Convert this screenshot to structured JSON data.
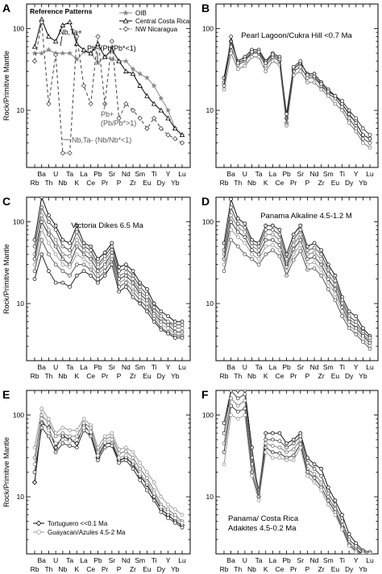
{
  "figure": {
    "ylabel": "Rock/Primitive Mantle",
    "elements_top": [
      "Ba",
      "U",
      "Ta",
      "La",
      "Pb",
      "Sr",
      "Nd",
      "Sm",
      "Ti",
      "Y",
      "Lu"
    ],
    "elements_bottom": [
      "Rb",
      "Th",
      "Nb",
      "K",
      "Ce",
      "Pr",
      "P",
      "Zr",
      "Eu",
      "Dy",
      "Yb"
    ]
  },
  "chart_data": [
    {
      "panel": "A",
      "type": "line",
      "yscale": "log",
      "ylim": [
        2,
        200
      ],
      "yticks": [
        10,
        100
      ],
      "ytick_labels": [
        "10",
        "100"
      ],
      "categories": [
        "Rb",
        "Ba",
        "Th",
        "U",
        "Nb",
        "Ta",
        "K",
        "La",
        "Ce",
        "Pb",
        "Pr",
        "Sr",
        "P",
        "Nd",
        "Zr",
        "Sm",
        "Eu",
        "Ti",
        "Dy",
        "Y",
        "Yb",
        "Lu"
      ],
      "legend_title": "Reference Patterns",
      "series": [
        {
          "name": "OIB",
          "color": "#888888",
          "marker": "star",
          "dash": "solid",
          "values": [
            50,
            50,
            55,
            50,
            50,
            50,
            42,
            52,
            50,
            38,
            45,
            42,
            40,
            40,
            32,
            28,
            25,
            20,
            14,
            10,
            6,
            5
          ]
        },
        {
          "name": "Central Costa Rica",
          "color": "#000000",
          "marker": "triangle",
          "dash": "solid",
          "values": [
            60,
            130,
            80,
            70,
            110,
            120,
            65,
            55,
            50,
            65,
            45,
            55,
            40,
            30,
            28,
            20,
            15,
            12,
            10,
            8,
            6,
            5
          ]
        },
        {
          "name": "NW Nicaragua",
          "color": "#444444",
          "marker": "diamond",
          "dash": "dashed",
          "values": [
            40,
            120,
            12,
            48,
            3,
            3,
            80,
            20,
            12,
            80,
            12,
            70,
            8,
            12,
            10,
            8,
            6,
            8,
            6,
            5,
            4.5,
            4
          ]
        }
      ],
      "annotations": [
        "Nb,Ta+",
        "Pb- (Pb/Pb*<1)",
        "Pb+",
        "(Pb/Pb*>1)",
        "Nb,Ta- (Nb/Nb*<1)"
      ]
    },
    {
      "panel": "B",
      "type": "line",
      "yscale": "log",
      "ylim": [
        2,
        200
      ],
      "yticks": [
        10,
        100
      ],
      "ytick_labels": [
        "10",
        "100"
      ],
      "title": "Pearl Lagoon/Cukra Hill <0.7 Ma",
      "categories": [
        "Rb",
        "Ba",
        "Th",
        "U",
        "Nb",
        "Ta",
        "K",
        "La",
        "Ce",
        "Pb",
        "Pr",
        "Sr",
        "P",
        "Nd",
        "Zr",
        "Sm",
        "Eu",
        "Ti",
        "Dy",
        "Y",
        "Yb",
        "Lu"
      ],
      "series": [
        {
          "values": [
            25,
            70,
            40,
            45,
            55,
            55,
            40,
            50,
            45,
            8,
            32,
            38,
            28,
            28,
            22,
            18,
            15,
            12,
            9,
            7,
            5,
            4.5
          ]
        },
        {
          "values": [
            22,
            60,
            36,
            40,
            50,
            50,
            35,
            45,
            40,
            7,
            30,
            34,
            25,
            25,
            20,
            16,
            14,
            11,
            8,
            6,
            4.5,
            4
          ]
        },
        {
          "values": [
            18,
            50,
            32,
            35,
            45,
            45,
            30,
            40,
            36,
            6.5,
            27,
            30,
            22,
            22,
            18,
            15,
            12,
            10,
            7,
            5.5,
            4,
            3.5
          ]
        },
        {
          "values": [
            20,
            80,
            38,
            42,
            52,
            52,
            38,
            48,
            42,
            9,
            34,
            40,
            27,
            26,
            21,
            17,
            15,
            13,
            10,
            8,
            6,
            5
          ]
        }
      ]
    },
    {
      "panel": "C",
      "type": "line",
      "yscale": "log",
      "ylim": [
        2,
        200
      ],
      "yticks": [
        10,
        100
      ],
      "ytick_labels": [
        "10",
        "100"
      ],
      "title": "Victoria Dikes 6.5 Ma",
      "categories": [
        "Rb",
        "Ba",
        "Th",
        "U",
        "Nb",
        "Ta",
        "K",
        "La",
        "Ce",
        "Pb",
        "Pr",
        "Sr",
        "P",
        "Nd",
        "Zr",
        "Sm",
        "Eu",
        "Ti",
        "Dy",
        "Y",
        "Yb",
        "Lu"
      ],
      "series": [
        {
          "values": [
            60,
            200,
            120,
            90,
            60,
            55,
            90,
            55,
            50,
            35,
            42,
            55,
            28,
            30,
            25,
            18,
            15,
            10,
            8,
            7,
            6,
            6
          ]
        },
        {
          "values": [
            50,
            150,
            100,
            80,
            50,
            45,
            75,
            50,
            45,
            30,
            38,
            50,
            25,
            27,
            22,
            16,
            13,
            9,
            7,
            6,
            5.5,
            5.5
          ]
        },
        {
          "values": [
            40,
            120,
            80,
            60,
            40,
            38,
            60,
            45,
            40,
            28,
            35,
            45,
            22,
            24,
            20,
            14,
            12,
            8,
            6.5,
            6,
            5,
            5
          ]
        },
        {
          "values": [
            35,
            100,
            70,
            50,
            35,
            30,
            50,
            40,
            35,
            25,
            30,
            42,
            20,
            22,
            18,
            13,
            11,
            7.5,
            6,
            5.5,
            4.5,
            4.5
          ]
        },
        {
          "values": [
            30,
            80,
            55,
            40,
            30,
            28,
            40,
            35,
            30,
            22,
            28,
            38,
            18,
            20,
            16,
            12,
            10,
            7,
            5.5,
            5,
            4.2,
            4.2
          ]
        },
        {
          "values": [
            25,
            60,
            40,
            30,
            25,
            22,
            30,
            30,
            26,
            20,
            25,
            35,
            16,
            18,
            14,
            11,
            9,
            6.5,
            5,
            4.5,
            4,
            4
          ]
        },
        {
          "values": [
            20,
            40,
            25,
            18,
            18,
            16,
            22,
            25,
            22,
            18,
            22,
            30,
            14,
            16,
            12,
            10,
            8,
            6,
            4.8,
            4.3,
            3.8,
            3.8
          ]
        }
      ]
    },
    {
      "panel": "D",
      "type": "line",
      "yscale": "log",
      "ylim": [
        2,
        200
      ],
      "yticks": [
        10,
        100
      ],
      "ytick_labels": [
        "10",
        "100"
      ],
      "title": "Panama Alkaline 4.5-1.2 M",
      "categories": [
        "Rb",
        "Ba",
        "Th",
        "U",
        "Nb",
        "Ta",
        "K",
        "La",
        "Ce",
        "Pb",
        "Pr",
        "Sr",
        "P",
        "Nd",
        "Zr",
        "Sm",
        "Eu",
        "Ti",
        "Dy",
        "Y",
        "Yb",
        "Lu"
      ],
      "series": [
        {
          "values": [
            55,
            190,
            110,
            95,
            60,
            55,
            90,
            90,
            80,
            40,
            70,
            90,
            50,
            55,
            45,
            30,
            22,
            12,
            8,
            7,
            5,
            4
          ]
        },
        {
          "values": [
            45,
            150,
            95,
            85,
            55,
            50,
            80,
            80,
            70,
            35,
            60,
            80,
            45,
            48,
            40,
            26,
            19,
            11,
            7,
            6,
            4.5,
            3.8
          ]
        },
        {
          "values": [
            40,
            120,
            85,
            75,
            50,
            45,
            70,
            70,
            60,
            30,
            52,
            70,
            40,
            42,
            35,
            23,
            17,
            10,
            6.5,
            5.5,
            4.2,
            3.5
          ]
        },
        {
          "values": [
            35,
            100,
            75,
            65,
            45,
            40,
            60,
            60,
            52,
            28,
            46,
            60,
            35,
            37,
            30,
            20,
            15,
            9,
            6,
            5,
            4,
            3.3
          ]
        },
        {
          "values": [
            30,
            80,
            65,
            55,
            40,
            35,
            50,
            52,
            45,
            25,
            40,
            52,
            30,
            32,
            26,
            18,
            13,
            8,
            5.5,
            4.6,
            3.7,
            3
          ]
        },
        {
          "values": [
            25,
            60,
            50,
            40,
            35,
            30,
            40,
            45,
            38,
            22,
            34,
            44,
            26,
            27,
            22,
            15,
            11,
            7,
            5,
            4.2,
            3.4,
            2.8
          ]
        }
      ]
    },
    {
      "panel": "E",
      "type": "line",
      "yscale": "log",
      "ylim": [
        2,
        200
      ],
      "yticks": [
        10,
        100
      ],
      "ytick_labels": [
        "10",
        "100"
      ],
      "categories": [
        "Rb",
        "Ba",
        "Th",
        "U",
        "Nb",
        "Ta",
        "K",
        "La",
        "Ce",
        "Pb",
        "Pr",
        "Sr",
        "P",
        "Nd",
        "Zr",
        "Sm",
        "Eu",
        "Ti",
        "Dy",
        "Y",
        "Yb",
        "Lu"
      ],
      "series": [
        {
          "name": "Tortuguero <<0.1 Ma",
          "color": "#000000",
          "marker": "diamond",
          "values": [
            15,
            80,
            70,
            40,
            55,
            50,
            45,
            75,
            60,
            30,
            45,
            45,
            28,
            30,
            25,
            18,
            14,
            10,
            7,
            6,
            5,
            4.5
          ]
        },
        {
          "name": "Guayacan/Azules 4.5-2 Ma",
          "color": "#999999",
          "marker": "circle",
          "values": [
            40,
            120,
            90,
            60,
            70,
            65,
            65,
            90,
            75,
            40,
            55,
            60,
            38,
            40,
            35,
            26,
            20,
            15,
            10,
            8,
            7,
            6
          ]
        },
        {
          "values": [
            30,
            100,
            80,
            55,
            60,
            55,
            55,
            80,
            70,
            35,
            50,
            55,
            34,
            36,
            30,
            22,
            17,
            12,
            8,
            7,
            6,
            5
          ]
        },
        {
          "values": [
            20,
            70,
            55,
            35,
            45,
            42,
            40,
            65,
            55,
            28,
            40,
            42,
            26,
            28,
            22,
            16,
            12,
            9,
            6.5,
            5.5,
            4.8,
            4.2
          ]
        },
        {
          "values": [
            25,
            90,
            65,
            45,
            50,
            48,
            50,
            70,
            62,
            32,
            46,
            50,
            30,
            32,
            27,
            19,
            15,
            11,
            7.5,
            6.5,
            5.5,
            4.8
          ]
        }
      ]
    },
    {
      "panel": "F",
      "type": "line",
      "yscale": "log",
      "ylim": [
        2,
        200
      ],
      "yticks": [
        10,
        100
      ],
      "ytick_labels": [
        "10",
        "100"
      ],
      "title": "Panama/ Costa Rica Adakites 4.5-0.2 Ma",
      "categories": [
        "Rb",
        "Ba",
        "Th",
        "U",
        "Nb",
        "Ta",
        "K",
        "La",
        "Ce",
        "Pb",
        "Pr",
        "Sr",
        "P",
        "Nd",
        "Zr",
        "Sm",
        "Eu",
        "Ti",
        "Dy",
        "Y",
        "Yb",
        "Lu"
      ],
      "series": [
        {
          "values": [
            80,
            250,
            200,
            220,
            40,
            10,
            60,
            60,
            60,
            45,
            50,
            60,
            30,
            25,
            22,
            13,
            9,
            6,
            3.5,
            2.7,
            2.2,
            2.1
          ]
        },
        {
          "values": [
            60,
            200,
            160,
            180,
            30,
            12,
            50,
            50,
            48,
            40,
            45,
            55,
            26,
            22,
            18,
            11,
            8,
            5,
            3,
            2.5,
            2.1,
            2
          ]
        },
        {
          "values": [
            45,
            160,
            130,
            150,
            25,
            11,
            45,
            42,
            40,
            35,
            38,
            50,
            22,
            19,
            15,
            10,
            7,
            4.5,
            2.8,
            2.3,
            2,
            1.9
          ]
        },
        {
          "values": [
            35,
            130,
            110,
            120,
            20,
            10,
            40,
            35,
            34,
            30,
            32,
            44,
            20,
            17,
            13,
            9,
            6.5,
            4.2,
            2.6,
            2.2,
            1.9,
            1.8
          ]
        },
        {
          "values": [
            25,
            100,
            90,
            100,
            18,
            9,
            35,
            30,
            30,
            28,
            28,
            40,
            18,
            15,
            12,
            8,
            6,
            4,
            2.5,
            2.1,
            1.9,
            1.8
          ]
        }
      ]
    }
  ]
}
